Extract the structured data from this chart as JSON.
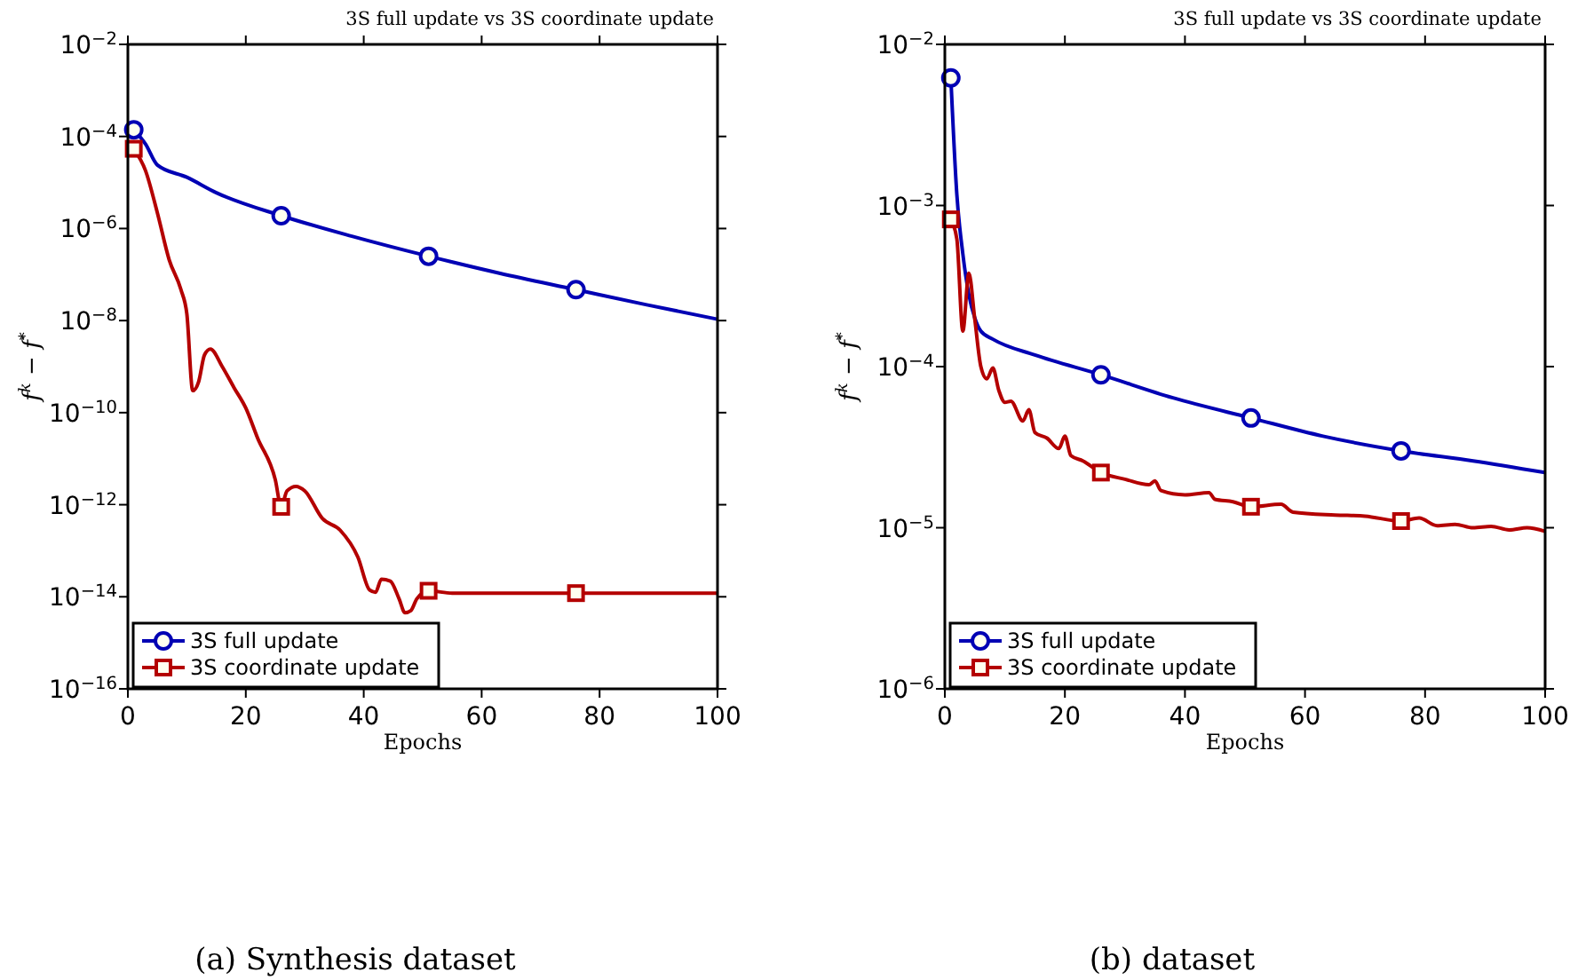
{
  "chart_data": [
    {
      "type": "line",
      "title": "3S full update vs 3S coordinate update",
      "xlabel": "Epochs",
      "ylabel": "f$^{k}$ − f$^{*}$",
      "log": "y",
      "grid": false,
      "legend": "bottom left",
      "xlim": [
        0,
        100
      ],
      "xticks": [
        0,
        20,
        40,
        60,
        80,
        100
      ],
      "ylim": [
        1e-16,
        0.01
      ],
      "yticks": [
        {
          "value": 1e-16,
          "label": "10$^{−16}$"
        },
        {
          "value": 1e-14,
          "label": "10$^{−14}$"
        },
        {
          "value": 1e-12,
          "label": "10$^{−12}$"
        },
        {
          "value": 1e-10,
          "label": "10$^{−10}$"
        },
        {
          "value": 1e-08,
          "label": "10$^{−8}$"
        },
        {
          "value": 1e-06,
          "label": "10$^{−6}$"
        },
        {
          "value": 0.0001,
          "label": "10$^{−4}$"
        },
        {
          "value": 0.01,
          "label": "10$^{−2}$"
        }
      ],
      "annotations": [
        "(a) Synthesis dataset"
      ],
      "series": [
        {
          "type": "line",
          "name": "3S full update",
          "color": "#0000b4",
          "x": [
            1,
            3,
            5,
            10,
            15,
            26,
            38,
            51,
            63,
            76,
            88,
            100
          ],
          "values": [
            0.00014,
            6.8e-05,
            2.4e-05,
            1.3e-05,
            6e-06,
            1.9e-06,
            6.8e-07,
            2.5e-07,
            1.07e-07,
            4.7e-08,
            2.2e-08,
            1.07e-08
          ]
        },
        {
          "type": "scatter",
          "marker": "circle",
          "color": "#0000b4",
          "x": [
            1,
            26,
            51,
            76
          ],
          "values": [
            0.00014,
            1.9e-06,
            2.5e-07,
            4.7e-08
          ]
        },
        {
          "type": "line",
          "name": "3S coordinate update",
          "color": "#b40000",
          "x": [
            1,
            3,
            5,
            7,
            9,
            10,
            11,
            12,
            13,
            14,
            16,
            18,
            20,
            22,
            25,
            26,
            27,
            28.5,
            30,
            33,
            36,
            39,
            41,
            42,
            43,
            44.5,
            46,
            47,
            48,
            49,
            51,
            55,
            60,
            70,
            80,
            90,
            100
          ],
          "values": [
            5.4e-05,
            1.8e-05,
            2.2e-06,
            2.1e-07,
            4.7e-08,
            1.4e-08,
            3e-10,
            4.7e-10,
            1.8e-09,
            2.4e-09,
            1e-09,
            3.5e-10,
            1.26e-10,
            2.8e-11,
            3.5e-12,
            9e-13,
            2e-12,
            2.5e-12,
            2e-12,
            5e-13,
            2.8e-13,
            7.3e-14,
            1.4e-14,
            1.25e-14,
            2.4e-14,
            2.2e-14,
            9e-15,
            4.5e-15,
            5e-15,
            9e-15,
            1.35e-14,
            1.2e-14,
            1.2e-14,
            1.2e-14,
            1.2e-14,
            1.2e-14,
            1.2e-14
          ]
        },
        {
          "type": "scatter",
          "marker": "square",
          "color": "#b40000",
          "x": [
            1,
            26,
            51,
            76
          ],
          "values": [
            5.4e-05,
            9e-13,
            1.35e-14,
            1.2e-14
          ]
        }
      ]
    },
    {
      "type": "line",
      "title": "3S full update vs 3S coordinate update",
      "xlabel": "Epochs",
      "ylabel": "f$^{k}$ − f$^{*}$",
      "log": "y",
      "grid": false,
      "legend": "bottom left",
      "xlim": [
        0,
        100
      ],
      "xticks": [
        0,
        20,
        40,
        60,
        80,
        100
      ],
      "ylim": [
        1e-06,
        0.01
      ],
      "yticks": [
        {
          "value": 1e-06,
          "label": "10$^{−6}$"
        },
        {
          "value": 1e-05,
          "label": "10$^{−5}$"
        },
        {
          "value": 0.0001,
          "label": "10$^{−4}$"
        },
        {
          "value": 0.001,
          "label": "10$^{−3}$"
        },
        {
          "value": 0.01,
          "label": "10$^{−2}$"
        }
      ],
      "annotations": [
        "(b) dataset"
      ],
      "series": [
        {
          "type": "line",
          "name": "3S full update",
          "color": "#0000b4",
          "x": [
            1,
            2,
            3,
            4,
            5,
            6,
            8,
            15,
            26,
            38,
            51,
            63,
            76,
            88,
            100
          ],
          "values": [
            0.0062,
            0.00117,
            0.0005,
            0.00028,
            0.0002,
            0.000166,
            0.000148,
            0.000118,
            8.9e-05,
            6.4e-05,
            4.8e-05,
            3.7e-05,
            3e-05,
            2.6e-05,
            2.2e-05
          ]
        },
        {
          "type": "scatter",
          "marker": "circle",
          "color": "#0000b4",
          "x": [
            1,
            26,
            51,
            76
          ],
          "values": [
            0.0062,
            8.9e-05,
            4.8e-05,
            3e-05
          ]
        },
        {
          "type": "line",
          "name": "3S coordinate update",
          "color": "#b40000",
          "x": [
            1,
            2,
            3,
            4,
            5,
            6,
            7,
            8,
            9,
            10,
            11,
            13,
            14,
            15,
            17,
            19,
            20,
            21,
            23,
            26,
            30,
            34,
            35,
            36,
            40,
            44,
            45,
            48,
            51,
            56,
            58,
            65,
            70,
            76,
            79,
            82,
            85,
            88,
            91,
            94,
            97,
            100
          ],
          "values": [
            0.00082,
            0.00062,
            0.000166,
            0.00038,
            0.000195,
            0.0001,
            8.4e-05,
            9.8e-05,
            7.1e-05,
            6e-05,
            6.1e-05,
            4.6e-05,
            5.4e-05,
            3.9e-05,
            3.6e-05,
            3.1e-05,
            3.7e-05,
            2.8e-05,
            2.6e-05,
            2.2e-05,
            2e-05,
            1.85e-05,
            1.95e-05,
            1.7e-05,
            1.6e-05,
            1.65e-05,
            1.5e-05,
            1.45e-05,
            1.35e-05,
            1.4e-05,
            1.25e-05,
            1.2e-05,
            1.18e-05,
            1.1e-05,
            1.15e-05,
            1.03e-05,
            1.05e-05,
            1e-05,
            1.02e-05,
            9.7e-06,
            1e-05,
            9.5e-06
          ]
        },
        {
          "type": "scatter",
          "marker": "square",
          "color": "#b40000",
          "x": [
            1,
            26,
            51,
            76
          ],
          "values": [
            0.00082,
            2.2e-05,
            1.35e-05,
            1.1e-05
          ]
        }
      ]
    }
  ]
}
